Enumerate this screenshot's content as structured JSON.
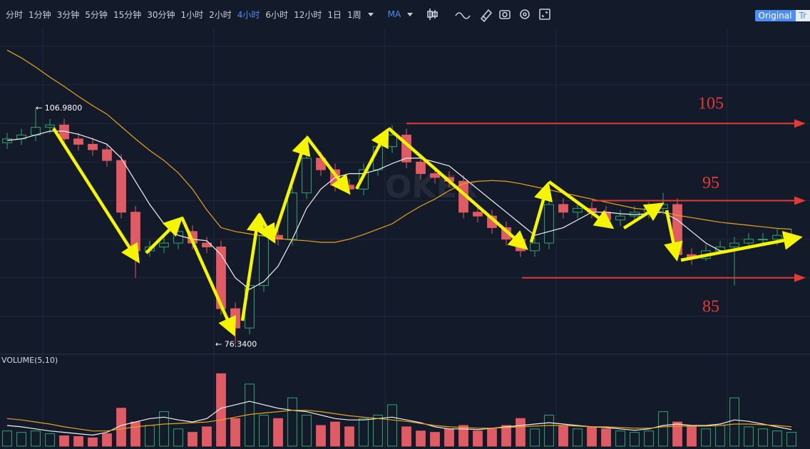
{
  "toolbar": {
    "intervals": [
      "分时",
      "1分钟",
      "3分钟",
      "5分钟",
      "15分钟",
      "30分钟",
      "1小时",
      "2小时",
      "4小时",
      "6小时",
      "12小时",
      "1日",
      "1周"
    ],
    "active_index": 8,
    "indicator": "MA",
    "buttons": [
      "Original",
      "Tr"
    ]
  },
  "chart_data": {
    "type": "candlestick",
    "open": [
      102.5,
      103.0,
      103.5,
      104.5,
      104.8,
      103.0,
      102.3,
      101.6,
      100.2,
      93.5,
      88.5,
      89.0,
      89.5,
      91.0,
      89.5,
      89.0,
      81.0,
      78.5,
      84.0,
      90.5,
      90.0,
      96.0,
      100.5,
      99.0,
      97.0,
      96.5,
      99.0,
      102.0,
      103.5,
      100.0,
      98.5,
      98.0,
      97.5,
      93.5,
      93.0,
      91.5,
      90.0,
      88.5,
      89.5,
      94.5,
      93.5,
      94.0,
      93.5,
      92.5,
      93.0,
      93.5,
      94.0,
      94.5,
      88.0,
      87.5,
      88.5,
      89.0,
      89.5,
      90.0,
      90.0,
      90.5
    ],
    "high": [
      103.8,
      104.3,
      106.98,
      105.6,
      105.6,
      103.8,
      103.1,
      102.4,
      101.0,
      94.3,
      89.8,
      90.3,
      91.8,
      91.8,
      90.3,
      89.8,
      81.8,
      84.8,
      91.3,
      91.3,
      96.8,
      103.5,
      101.3,
      99.8,
      97.8,
      99.8,
      102.8,
      104.8,
      104.3,
      100.8,
      99.3,
      98.8,
      98.3,
      94.3,
      93.8,
      92.3,
      90.8,
      90.3,
      97.0,
      95.3,
      94.8,
      94.8,
      94.3,
      93.8,
      94.3,
      94.8,
      96.0,
      95.3,
      88.8,
      89.3,
      89.8,
      90.3,
      90.8,
      90.8,
      91.3,
      91.3
    ],
    "low": [
      101.7,
      102.2,
      102.7,
      103.7,
      102.2,
      101.5,
      100.8,
      99.4,
      92.7,
      85.0,
      87.7,
      88.2,
      88.7,
      88.7,
      88.2,
      80.2,
      76.34,
      77.7,
      83.2,
      89.2,
      89.2,
      95.2,
      98.2,
      96.2,
      95.7,
      95.7,
      98.2,
      101.2,
      99.2,
      97.7,
      97.2,
      96.7,
      92.7,
      92.2,
      90.7,
      89.2,
      87.7,
      87.7,
      88.7,
      92.7,
      92.7,
      92.7,
      91.7,
      91.7,
      92.2,
      92.7,
      93.2,
      87.2,
      86.7,
      87.2,
      88.2,
      84.0,
      88.7,
      89.2,
      89.2,
      89.7
    ],
    "close": [
      103.0,
      103.5,
      104.5,
      104.8,
      103.0,
      102.3,
      101.6,
      100.2,
      93.5,
      88.5,
      89.0,
      89.5,
      91.0,
      89.5,
      89.0,
      81.0,
      78.5,
      84.0,
      90.5,
      90.0,
      96.0,
      100.5,
      99.0,
      97.0,
      96.5,
      99.0,
      102.0,
      103.5,
      100.0,
      98.5,
      98.0,
      97.5,
      93.5,
      93.0,
      91.5,
      90.0,
      88.5,
      89.5,
      94.5,
      93.5,
      94.0,
      93.5,
      92.5,
      93.0,
      93.5,
      94.0,
      94.5,
      88.0,
      87.5,
      88.5,
      89.0,
      89.5,
      90.0,
      90.0,
      90.5,
      90.5
    ],
    "up_color": "#2fa56b",
    "down_color": "#e05b63",
    "ylim": [
      75.1,
      117.3
    ],
    "ygrid": [
      80,
      85,
      90,
      95,
      100,
      105,
      110,
      115
    ],
    "ma_lines": [
      {
        "color": "#f2f2f2",
        "values": [
          102.8,
          103.0,
          103.5,
          104.0,
          104.0,
          103.6,
          103.0,
          102.3,
          100.5,
          97.5,
          94.5,
          92.0,
          90.5,
          90.0,
          89.8,
          88.0,
          85.0,
          83.5,
          84.5,
          86.5,
          90.0,
          94.0,
          96.5,
          98.0,
          98.5,
          98.5,
          99.0,
          99.8,
          100.5,
          100.5,
          100.0,
          99.5,
          98.0,
          96.5,
          95.0,
          93.5,
          92.0,
          90.5,
          91.0,
          91.5,
          92.5,
          93.5,
          93.5,
          93.3,
          93.2,
          93.3,
          93.5,
          92.5,
          91.0,
          89.5,
          88.5,
          88.5,
          89.0,
          89.5,
          89.8,
          90.2
        ]
      },
      {
        "color": "#e8a317",
        "values": [
          114.5,
          113.5,
          112.3,
          111.0,
          109.8,
          108.5,
          107.3,
          106.2,
          104.6,
          103.0,
          101.5,
          100.2,
          98.6,
          96.5,
          93.8,
          91.5,
          91.0,
          90.7,
          90.4,
          90.1,
          89.9,
          89.8,
          89.6,
          89.6,
          90.0,
          90.6,
          91.3,
          92.0,
          93.2,
          94.3,
          95.2,
          96.3,
          97.2,
          97.5,
          97.6,
          97.5,
          97.2,
          96.8,
          96.4,
          96.0,
          95.6,
          95.2,
          94.8,
          94.4,
          94.0,
          93.8,
          93.5,
          93.1,
          92.8,
          92.5,
          92.2,
          92.0,
          91.8,
          91.6,
          91.4,
          91.3
        ]
      }
    ],
    "max_label": {
      "value": 106.98,
      "label": "← 106.9800"
    },
    "min_label": {
      "value": 76.34,
      "label": "← 76.3400"
    },
    "levels": [
      105,
      95,
      85
    ],
    "level_color": "#e53935",
    "watermark": "OKEx",
    "volume_label": "VOLUME(5,10)",
    "volume": [
      22,
      20,
      22,
      18,
      15,
      14,
      12,
      18,
      55,
      35,
      30,
      50,
      25,
      20,
      28,
      105,
      40,
      90,
      45,
      40,
      70,
      45,
      30,
      35,
      28,
      40,
      45,
      60,
      28,
      22,
      20,
      25,
      30,
      22,
      25,
      30,
      40,
      25,
      45,
      30,
      25,
      28,
      25,
      22,
      20,
      22,
      50,
      35,
      28,
      25,
      30,
      70,
      28,
      25,
      22,
      20
    ],
    "volume_ylim": [
      0,
      125
    ],
    "volume_ma": [
      {
        "color": "#f2f2f2",
        "values": [
          30,
          28,
          25,
          22,
          20,
          18,
          16,
          20,
          30,
          35,
          40,
          42,
          38,
          35,
          40,
          55,
          60,
          65,
          60,
          55,
          52,
          50,
          45,
          40,
          38,
          38,
          40,
          42,
          38,
          34,
          28,
          25,
          25,
          24,
          26,
          28,
          30,
          32,
          34,
          32,
          30,
          28,
          27,
          25,
          23,
          25,
          30,
          32,
          30,
          30,
          32,
          38,
          36,
          32,
          28,
          24
        ]
      },
      {
        "color": "#e8a317",
        "values": [
          40,
          38,
          35,
          32,
          28,
          25,
          22,
          22,
          25,
          28,
          30,
          32,
          33,
          34,
          35,
          38,
          42,
          46,
          48,
          50,
          52,
          52,
          50,
          47,
          44,
          42,
          40,
          38,
          36,
          33,
          30,
          28,
          27,
          26,
          26,
          27,
          28,
          29,
          30,
          30,
          29,
          28,
          28,
          27,
          26,
          26,
          28,
          29,
          29,
          29,
          30,
          32,
          32,
          31,
          30,
          28
        ]
      }
    ]
  }
}
